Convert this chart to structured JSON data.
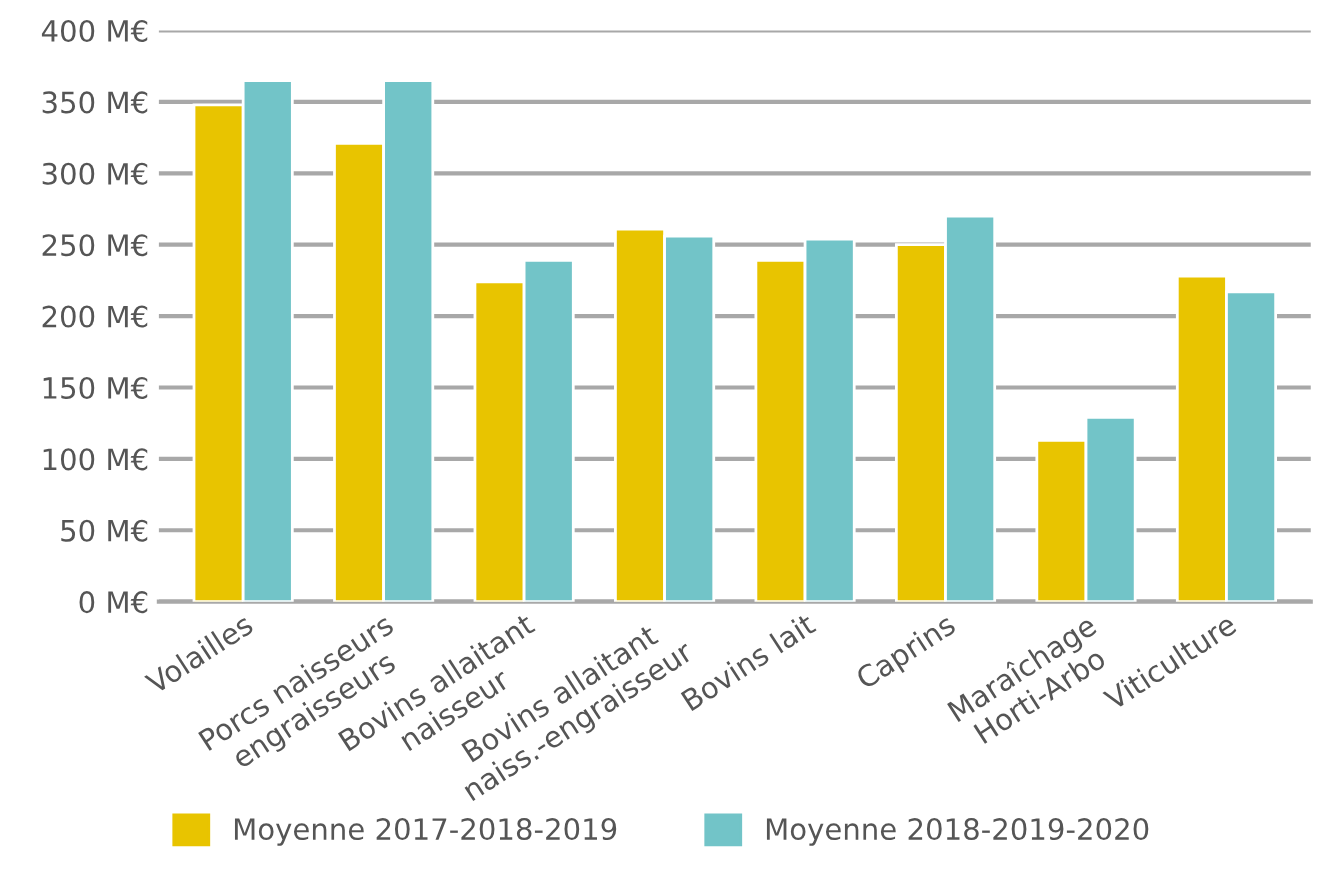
{
  "chart_data": {
    "type": "bar",
    "categories": [
      "Volailles",
      "Porcs naisseurs\nengraisseurs",
      "Bovins allaitant\nnaisseur",
      "Bovins allaitant\nnaiss.-engraisseur",
      "Bovins lait",
      "Caprins",
      "Maraîchage\nHorti-Arbo",
      "Viticulture"
    ],
    "series": [
      {
        "name": "Moyenne 2017-2018-2019",
        "color": "#e8c400",
        "values": [
          348,
          321,
          224,
          261,
          239,
          250,
          113,
          228
        ]
      },
      {
        "name": "Moyenne 2018-2019-2020",
        "color": "#72c4c8",
        "values": [
          365,
          365,
          239,
          256,
          254,
          270,
          129,
          217
        ]
      }
    ],
    "ylim": [
      0,
      400
    ],
    "yticks": [
      {
        "value": 0,
        "label": "0 M€"
      },
      {
        "value": 50,
        "label": "50 M€"
      },
      {
        "value": 100,
        "label": "100 M€"
      },
      {
        "value": 150,
        "label": "150 M€"
      },
      {
        "value": 200,
        "label": "200 M€"
      },
      {
        "value": 250,
        "label": "250 M€"
      },
      {
        "value": 300,
        "label": "300 M€"
      },
      {
        "value": 350,
        "label": "350 M€"
      },
      {
        "value": 400,
        "label": "400 M€"
      }
    ],
    "grid": "y",
    "legend": "bottom"
  }
}
